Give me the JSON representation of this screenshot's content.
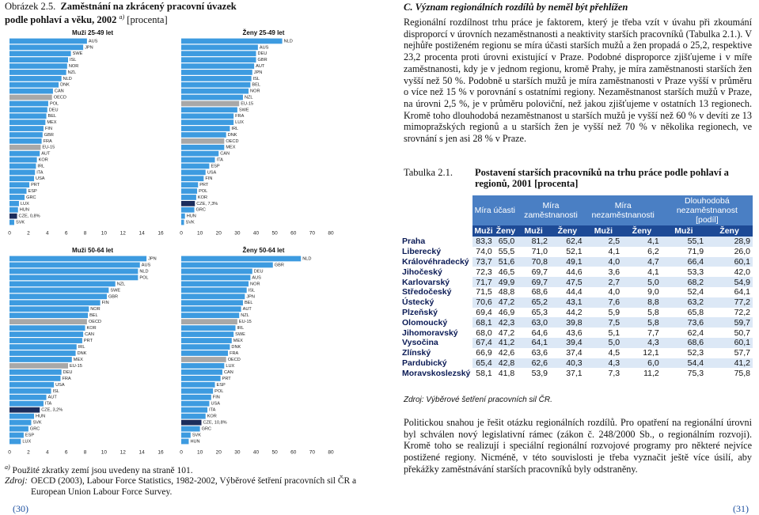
{
  "figure": {
    "label": "Obrázek 2.5.",
    "title": "Zaměstnání na zkrácený pracovní úvazek podle pohlaví a věku, 2002",
    "note_mark": "a)",
    "unit": "[procenta]"
  },
  "chart_data": [
    {
      "type": "bar",
      "orientation": "horizontal",
      "title": "Muži 25-49 let",
      "categories": [
        "AUS",
        "JPN",
        "SWE",
        "ISL",
        "NOR",
        "NZL",
        "NLD",
        "DNK",
        "CAN",
        "OECD",
        "POL",
        "DEU",
        "BEL",
        "MEX",
        "FIN",
        "GBR",
        "FRA",
        "EU-15",
        "AUT",
        "KOR",
        "IRL",
        "ITA",
        "USA",
        "PRT",
        "ESP",
        "GRC",
        "LUX",
        "HUN",
        "CZE, 0,8%",
        "SVK"
      ],
      "values": [
        8.2,
        7.8,
        6.5,
        6.2,
        6.1,
        6.0,
        5.5,
        5.2,
        4.6,
        4.5,
        4.1,
        4.0,
        3.9,
        3.8,
        3.6,
        3.5,
        3.4,
        3.3,
        3.2,
        2.9,
        2.8,
        2.7,
        2.6,
        2.1,
        1.8,
        1.6,
        1.0,
        0.9,
        0.8,
        0.5
      ],
      "colors": [
        "#3d9be0",
        "#3d9be0",
        "#3d9be0",
        "#3d9be0",
        "#3d9be0",
        "#3d9be0",
        "#3d9be0",
        "#3d9be0",
        "#3d9be0",
        "#a8a8a8",
        "#3d9be0",
        "#3d9be0",
        "#3d9be0",
        "#3d9be0",
        "#3d9be0",
        "#3d9be0",
        "#3d9be0",
        "#a8a8a8",
        "#3d9be0",
        "#3d9be0",
        "#3d9be0",
        "#3d9be0",
        "#3d9be0",
        "#3d9be0",
        "#3d9be0",
        "#3d9be0",
        "#3d9be0",
        "#3d9be0",
        "#1c2d5c",
        "#3d9be0"
      ],
      "xlim": [
        0,
        16
      ],
      "xticks": [
        0,
        2,
        4,
        6,
        8,
        10,
        12,
        14,
        16
      ]
    },
    {
      "type": "bar",
      "orientation": "horizontal",
      "title": "Ženy 25-49 let",
      "categories": [
        "NLD",
        "AUS",
        "DEU",
        "GBR",
        "AUT",
        "JPN",
        "ISL",
        "BEL",
        "NOR",
        "NZL",
        "EU-15",
        "SWE",
        "FRA",
        "LUX",
        "IRL",
        "DNK",
        "OECD",
        "MEX",
        "CAN",
        "ITA",
        "ESP",
        "USA",
        "FIN",
        "PRT",
        "POL",
        "KOR",
        "CZE, 7,3%",
        "GRC",
        "HUN",
        "SVK"
      ],
      "values": [
        54,
        41,
        40,
        40,
        39,
        38,
        37.5,
        37,
        36,
        33,
        31,
        30,
        28,
        28,
        26,
        24,
        23,
        23,
        20,
        18,
        15,
        13,
        12,
        9,
        8.5,
        8,
        7.3,
        7,
        2,
        1.5
      ],
      "colors": [
        "#3d9be0",
        "#3d9be0",
        "#3d9be0",
        "#3d9be0",
        "#3d9be0",
        "#3d9be0",
        "#3d9be0",
        "#3d9be0",
        "#3d9be0",
        "#3d9be0",
        "#a8a8a8",
        "#3d9be0",
        "#3d9be0",
        "#3d9be0",
        "#3d9be0",
        "#3d9be0",
        "#a8a8a8",
        "#3d9be0",
        "#3d9be0",
        "#3d9be0",
        "#3d9be0",
        "#3d9be0",
        "#3d9be0",
        "#3d9be0",
        "#3d9be0",
        "#3d9be0",
        "#1c2d5c",
        "#3d9be0",
        "#3d9be0",
        "#3d9be0"
      ],
      "xlim": [
        0,
        80
      ],
      "xticks": [
        0,
        10,
        20,
        30,
        40,
        50,
        60,
        70,
        80
      ]
    },
    {
      "type": "bar",
      "orientation": "horizontal",
      "title": "Muži 50-64 let",
      "categories": [
        "JPN",
        "AUS",
        "NLD",
        "POL",
        "NZL",
        "SWE",
        "GBR",
        "FIN",
        "NOR",
        "BEL",
        "OECD",
        "KOR",
        "CAN",
        "PRT",
        "IRL",
        "DNK",
        "MEX",
        "EU-15",
        "DEU",
        "FRA",
        "USA",
        "ISL",
        "AUT",
        "ITA",
        "CZE, 3,2%",
        "HUN",
        "SVK",
        "GRC",
        "ESP",
        "LUX"
      ],
      "values": [
        14.5,
        13.8,
        13.6,
        13.6,
        11.2,
        10.5,
        10.3,
        9.6,
        8.4,
        8.3,
        8.2,
        8.0,
        7.8,
        7.7,
        7.1,
        7.0,
        6.6,
        6.2,
        5.5,
        5.4,
        4.7,
        4.4,
        3.9,
        3.6,
        3.2,
        2.6,
        2.3,
        2.0,
        1.5,
        1.2
      ],
      "colors": [
        "#3d9be0",
        "#3d9be0",
        "#3d9be0",
        "#3d9be0",
        "#3d9be0",
        "#3d9be0",
        "#3d9be0",
        "#3d9be0",
        "#3d9be0",
        "#3d9be0",
        "#a8a8a8",
        "#3d9be0",
        "#3d9be0",
        "#3d9be0",
        "#3d9be0",
        "#3d9be0",
        "#3d9be0",
        "#a8a8a8",
        "#3d9be0",
        "#3d9be0",
        "#3d9be0",
        "#3d9be0",
        "#3d9be0",
        "#3d9be0",
        "#1c2d5c",
        "#3d9be0",
        "#3d9be0",
        "#3d9be0",
        "#3d9be0",
        "#3d9be0"
      ],
      "xlim": [
        0,
        16
      ],
      "xticks": [
        0,
        2,
        4,
        6,
        8,
        10,
        12,
        14,
        16
      ]
    },
    {
      "type": "bar",
      "orientation": "horizontal",
      "title": "Ženy 50-64 let",
      "categories": [
        "NLD",
        "GBR",
        "DEU",
        "AUS",
        "NOR",
        "ISL",
        "JPN",
        "BEL",
        "AUT",
        "NZL",
        "EU-15",
        "IRL",
        "SWE",
        "MEX",
        "DNK",
        "FRA",
        "OECD",
        "LUX",
        "CAN",
        "PRT",
        "ESP",
        "POL",
        "FIN",
        "USA",
        "ITA",
        "KOR",
        "CZE, 10,8%",
        "GRC",
        "SVK",
        "HUN"
      ],
      "values": [
        64,
        49,
        38,
        37,
        36,
        35,
        34,
        33,
        32,
        31,
        30,
        29,
        28,
        27,
        26,
        25,
        24,
        23,
        22,
        21,
        18,
        17,
        16,
        15,
        14,
        13,
        10.8,
        10,
        5,
        4
      ],
      "colors": [
        "#3d9be0",
        "#3d9be0",
        "#3d9be0",
        "#3d9be0",
        "#3d9be0",
        "#3d9be0",
        "#3d9be0",
        "#3d9be0",
        "#3d9be0",
        "#3d9be0",
        "#a8a8a8",
        "#3d9be0",
        "#3d9be0",
        "#3d9be0",
        "#3d9be0",
        "#3d9be0",
        "#a8a8a8",
        "#3d9be0",
        "#3d9be0",
        "#3d9be0",
        "#3d9be0",
        "#3d9be0",
        "#3d9be0",
        "#3d9be0",
        "#3d9be0",
        "#3d9be0",
        "#1c2d5c",
        "#3d9be0",
        "#3d9be0",
        "#3d9be0"
      ],
      "xlim": [
        0,
        80
      ],
      "xticks": [
        0,
        10,
        20,
        30,
        40,
        50,
        60,
        70,
        80
      ]
    }
  ],
  "footnotes": {
    "mark": "a)",
    "text": "Použité zkratky zemí jsou uvedeny na straně 101.",
    "source_label": "Zdroj:",
    "source_text": "OECD (2003), Labour Force Statistics, 1982-2002, Výběrové šetření pracovních sil ČR a European Union Labour Force Survey."
  },
  "section": {
    "heading": "C. Význam regionálních rozdílů by neměl být přehlížen",
    "paragraphs": [
      "Regionální rozdílnost trhu práce je faktorem, který je třeba vzít v úvahu při zkoumání disproporcí v úrovních nezaměstnanosti a neaktivity starších pracovníků (Tabulka 2.1.). V nejhůře postiženém regionu se míra účasti starších mužů a žen propadá o 25,2, respektive 23,2 procenta proti úrovni existující v Praze. Podobné disproporce zjišťujeme i v míře zaměstnanosti, kdy je v jednom regionu, kromě Prahy, je míra zaměstnanosti starších žen vyšší než 50 %. Podobně u starších mužů je míra zaměstnanosti v Praze vyšší v průměru o více než 15 % v porovnání s ostatními regiony. Nezaměstnanost starších mužů v Praze, na úrovni 2,5 %, je v průměru poloviční, než jakou zjišťujeme v ostatních 13 regionech. Kromě toho dlouhodobá nezaměstnanost u starších mužů je vyšší než 60 % v devíti ze 13 mimopražských regionů a u starších žen je vyšší než 70 % v několika regionech, ve srovnání s jen asi 28 % v Praze.",
      "Politickou snahou je řešit otázku regionálních rozdílů. Pro opatření na regionální úrovni byl schválen nový legislativní rámec (zákon č. 248/2000 Sb., o regionálním rozvoji). Kromě toho se realizují i speciální regionální rozvojové programy pro některé nejvíce postižené regiony. Nicméně, v této souvislosti je třeba vyznačit ještě více úsilí, aby překážky zaměstnávání starších pracovníků byly odstraněny."
    ]
  },
  "table": {
    "label": "Tabulka 2.1.",
    "title": "Postavení starších pracovníků na trhu práce podle pohlaví a regionů, 2001 [procenta]",
    "header": [
      "Míra účasti",
      "Míra zaměstnanosti",
      "Míra nezaměstnanosti",
      "Dlouhodobá nezaměstnanost"
    ],
    "header_note": "[podíl]",
    "subheader": [
      "Muži",
      "Ženy",
      "Muži",
      "Ženy",
      "Muži",
      "Ženy",
      "Muži",
      "Ženy"
    ],
    "rows": [
      [
        "Praha",
        "83,3",
        "65,0",
        "81,2",
        "62,4",
        "2,5",
        "4,1",
        "55,1",
        "28,9"
      ],
      [
        "Liberecký",
        "74,0",
        "55,5",
        "71,0",
        "52,1",
        "4,1",
        "6,2",
        "71,9",
        "26,0"
      ],
      [
        "Královéhradecký",
        "73,7",
        "51,6",
        "70,8",
        "49,1",
        "4,0",
        "4,7",
        "66,4",
        "60,1"
      ],
      [
        "Jihočeský",
        "72,3",
        "46,5",
        "69,7",
        "44,6",
        "3,6",
        "4,1",
        "53,3",
        "42,0"
      ],
      [
        "Karlovarský",
        "71,7",
        "49,9",
        "69,7",
        "47,5",
        "2,7",
        "5,0",
        "68,2",
        "54,9"
      ],
      [
        "Středočeský",
        "71,5",
        "48,8",
        "68,6",
        "44,4",
        "4,0",
        "9,0",
        "52,4",
        "64,1"
      ],
      [
        "Ústecký",
        "70,6",
        "47,2",
        "65,2",
        "43,1",
        "7,6",
        "8,8",
        "63,2",
        "77,2"
      ],
      [
        "Plzeňský",
        "69,4",
        "46,9",
        "65,3",
        "44,2",
        "5,9",
        "5,8",
        "65,8",
        "72,2"
      ],
      [
        "Olomoucký",
        "68,1",
        "42,3",
        "63,0",
        "39,8",
        "7,5",
        "5,8",
        "73,6",
        "59,7"
      ],
      [
        "Jihomoravský",
        "68,0",
        "47,2",
        "64,6",
        "43,6",
        "5,1",
        "7,7",
        "62,4",
        "50,7"
      ],
      [
        "Vysočina",
        "67,4",
        "41,2",
        "64,1",
        "39,4",
        "5,0",
        "4,3",
        "68,6",
        "60,1"
      ],
      [
        "Zlínský",
        "66,9",
        "42,6",
        "63,6",
        "37,4",
        "4,5",
        "12,1",
        "52,3",
        "57,7"
      ],
      [
        "Pardubický",
        "65,4",
        "42,8",
        "62,6",
        "40,3",
        "4,3",
        "6,0",
        "54,4",
        "41,2"
      ],
      [
        "Moravskoslezský",
        "58,1",
        "41,8",
        "53,9",
        "37,1",
        "7,3",
        "11,2",
        "75,3",
        "75,8"
      ]
    ],
    "source": "Zdroj: Výběrové šetření pracovních sil ČR."
  },
  "page_numbers": [
    "(30)",
    "(31)"
  ]
}
